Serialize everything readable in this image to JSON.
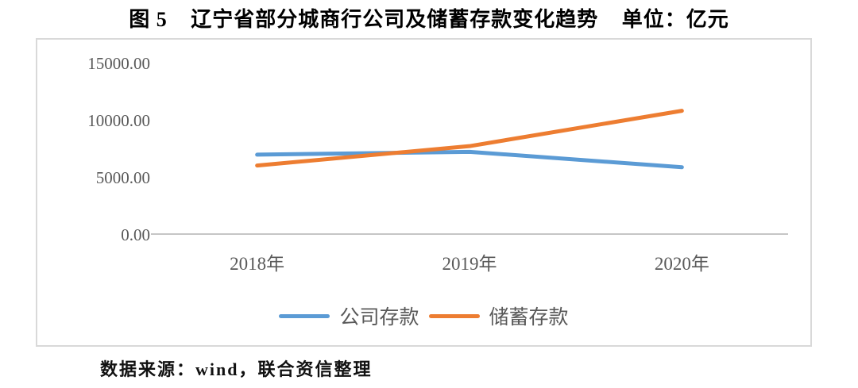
{
  "title": {
    "figure_label": "图 5",
    "text": "辽宁省部分城商行公司及储蓄存款变化趋势",
    "unit_label": "单位：亿元"
  },
  "source_note": "数据来源：wind，联合资信整理",
  "chart_data": {
    "type": "line",
    "categories": [
      "2018年",
      "2019年",
      "2020年"
    ],
    "series": [
      {
        "name": "公司存款",
        "color": "#5B9BD5",
        "values": [
          7000,
          7250,
          5900
        ]
      },
      {
        "name": "储蓄存款",
        "color": "#ED7D31",
        "values": [
          6050,
          7750,
          10850
        ]
      }
    ],
    "ylim": [
      0,
      15000
    ],
    "yticks": [
      15000,
      10000,
      5000,
      0
    ],
    "ytick_labels": [
      "15000.00",
      "10000.00",
      "5000.00",
      "0.00"
    ],
    "xlabel": "",
    "ylabel": "",
    "grid": false,
    "legend_position": "bottom",
    "axis_color": "#C6C6C6",
    "label_color": "#595959",
    "plot_border_color": "#D9D9D9"
  }
}
